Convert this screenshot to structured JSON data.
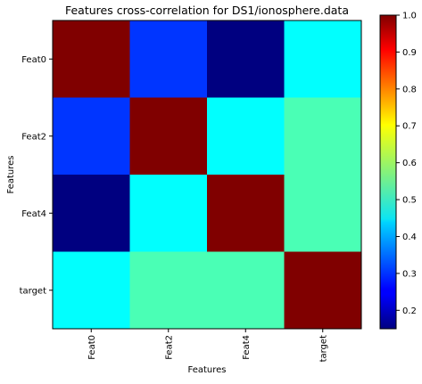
{
  "chart_data": {
    "type": "heatmap",
    "title": "Features cross-correlation for DS1/ionosphere.data",
    "xlabel": "Features",
    "ylabel": "Features",
    "x_categories": [
      "Feat0",
      "Feat2",
      "Feat4",
      "target"
    ],
    "y_categories": [
      "Feat0",
      "Feat2",
      "Feat4",
      "target"
    ],
    "values": [
      [
        1.0,
        0.3,
        0.15,
        0.47
      ],
      [
        0.3,
        1.0,
        0.47,
        0.53
      ],
      [
        0.15,
        0.47,
        1.0,
        0.53
      ],
      [
        0.47,
        0.53,
        0.53,
        1.0
      ]
    ],
    "colormap": "jet",
    "colorbar": {
      "min": 0.15,
      "max": 1.0,
      "ticks": [
        0.2,
        0.3,
        0.4,
        0.5,
        0.6,
        0.7,
        0.8,
        0.9,
        1.0
      ],
      "tick_labels": [
        "0.2",
        "0.3",
        "0.4",
        "0.5",
        "0.6",
        "0.7",
        "0.8",
        "0.9",
        "1.0"
      ]
    },
    "grid": false
  }
}
